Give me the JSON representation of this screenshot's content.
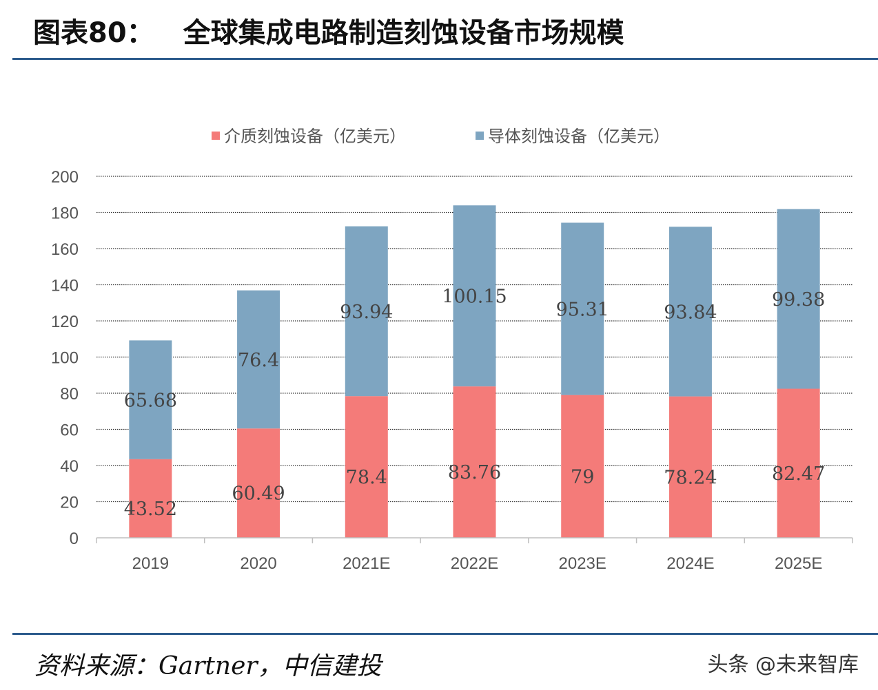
{
  "header": {
    "figure_number": "图表80：",
    "title": "全球集成电路制造刻蚀设备市场规模"
  },
  "footer": {
    "source": "资料来源：Gartner，中信建投",
    "watermark": "头条 @未来智库"
  },
  "colors": {
    "dielectric": "#f47b79",
    "conductor": "#7ea5c1",
    "rule": "#2b5a8c",
    "grid": "#333333"
  },
  "chart_data": {
    "type": "bar",
    "stacked": true,
    "categories": [
      "2019",
      "2020",
      "2021E",
      "2022E",
      "2023E",
      "2024E",
      "2025E"
    ],
    "series": [
      {
        "name": "介质刻蚀设备（亿美元）",
        "values": [
          43.52,
          60.49,
          78.4,
          83.76,
          79,
          78.24,
          82.47
        ]
      },
      {
        "name": "导体刻蚀设备（亿美元）",
        "values": [
          65.68,
          76.4,
          93.94,
          100.15,
          95.31,
          93.84,
          99.38
        ]
      }
    ],
    "data_labels": [
      [
        "43.52",
        "60.49",
        "78.4",
        "83.76",
        "79",
        "78.24",
        "82.47"
      ],
      [
        "65.68",
        "76.4",
        "93.94",
        "100.15",
        "95.31",
        "93.84",
        "99.38"
      ]
    ],
    "ylim": [
      0,
      200
    ],
    "yticks": [
      "0",
      "20",
      "40",
      "60",
      "80",
      "100",
      "120",
      "140",
      "160",
      "180",
      "200"
    ],
    "legend_position": "top",
    "grid": true
  }
}
